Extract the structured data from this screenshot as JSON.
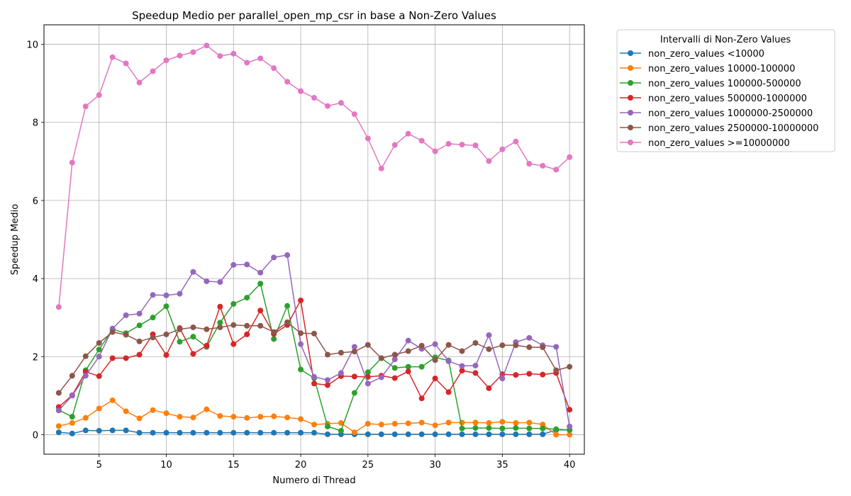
{
  "chart_data": {
    "type": "line",
    "title": "Speedup Medio per parallel_open_mp_csr in base a Non-Zero Values",
    "xlabel": "Numero di Thread",
    "ylabel": "Speedup Medio",
    "xlim": [
      0.9,
      41.1
    ],
    "ylim": [
      -0.5,
      10.5
    ],
    "xticks": [
      5,
      10,
      15,
      20,
      25,
      30,
      35,
      40
    ],
    "yticks": [
      0,
      2,
      4,
      6,
      8,
      10
    ],
    "grid": true,
    "legend_position": "outside-top-right",
    "legend_title": "Intervalli di Non-Zero Values",
    "x": [
      2,
      3,
      4,
      5,
      6,
      7,
      8,
      9,
      10,
      11,
      12,
      13,
      14,
      15,
      16,
      17,
      18,
      19,
      20,
      21,
      22,
      23,
      24,
      25,
      26,
      27,
      28,
      29,
      30,
      31,
      32,
      33,
      34,
      35,
      36,
      37,
      38,
      39,
      40
    ],
    "series": [
      {
        "name": "non_zero_values <10000",
        "color": "#1f77b4",
        "values": [
          0.06,
          0.03,
          0.11,
          0.1,
          0.11,
          0.11,
          0.05,
          0.05,
          0.05,
          0.05,
          0.05,
          0.05,
          0.05,
          0.05,
          0.05,
          0.05,
          0.05,
          0.05,
          0.05,
          0.05,
          0.01,
          0.01,
          0.01,
          0.01,
          0.01,
          0.01,
          0.01,
          0.01,
          0.01,
          0.01,
          0.01,
          0.01,
          0.01,
          0.01,
          0.01,
          0.01,
          0.01,
          0.12,
          0.12
        ]
      },
      {
        "name": "non_zero_values 10000-100000",
        "color": "#ff7f0e",
        "values": [
          0.22,
          0.3,
          0.43,
          0.67,
          0.88,
          0.6,
          0.42,
          0.63,
          0.55,
          0.46,
          0.44,
          0.65,
          0.48,
          0.46,
          0.43,
          0.46,
          0.47,
          0.44,
          0.4,
          0.26,
          0.28,
          0.3,
          0.06,
          0.28,
          0.26,
          0.28,
          0.29,
          0.31,
          0.24,
          0.31,
          0.31,
          0.31,
          0.3,
          0.33,
          0.3,
          0.31,
          0.26,
          0.0,
          0.0
        ]
      },
      {
        "name": "non_zero_values 100000-500000",
        "color": "#2ca02c",
        "values": [
          0.63,
          0.46,
          1.65,
          2.18,
          2.7,
          2.6,
          2.8,
          3.0,
          3.29,
          2.38,
          2.51,
          2.25,
          2.87,
          3.35,
          3.51,
          3.87,
          2.45,
          3.3,
          1.67,
          1.45,
          0.21,
          0.1,
          1.07,
          1.6,
          1.96,
          1.71,
          1.74,
          1.74,
          1.98,
          1.9,
          0.16,
          0.17,
          0.17,
          0.16,
          0.17,
          0.16,
          0.16,
          0.14,
          0.12
        ]
      },
      {
        "name": "non_zero_values 500000-1000000",
        "color": "#d62728",
        "values": [
          0.71,
          1.01,
          1.61,
          1.5,
          1.96,
          1.96,
          2.05,
          2.57,
          2.04,
          2.73,
          2.07,
          2.28,
          3.28,
          2.32,
          2.57,
          3.18,
          2.58,
          2.81,
          3.44,
          1.31,
          1.27,
          1.5,
          1.49,
          1.48,
          1.51,
          1.45,
          1.62,
          0.93,
          1.44,
          1.09,
          1.64,
          1.58,
          1.19,
          1.55,
          1.53,
          1.56,
          1.54,
          1.58,
          0.64
        ]
      },
      {
        "name": "non_zero_values 1000000-2500000",
        "color": "#9467bd",
        "values": [
          0.62,
          1.0,
          1.51,
          2.0,
          2.72,
          3.06,
          3.1,
          3.58,
          3.57,
          3.61,
          4.17,
          3.93,
          3.91,
          4.35,
          4.36,
          4.15,
          4.54,
          4.6,
          2.32,
          1.48,
          1.4,
          1.58,
          2.25,
          1.31,
          1.47,
          1.93,
          2.41,
          2.2,
          2.32,
          1.88,
          1.76,
          1.77,
          2.55,
          1.44,
          2.37,
          2.48,
          2.29,
          2.25,
          0.21
        ]
      },
      {
        "name": "non_zero_values 2500000-10000000",
        "color": "#8c564b",
        "values": [
          1.07,
          1.51,
          2.01,
          2.35,
          2.63,
          2.56,
          2.39,
          2.49,
          2.57,
          2.7,
          2.75,
          2.7,
          2.75,
          2.81,
          2.79,
          2.79,
          2.63,
          2.88,
          2.6,
          2.59,
          2.05,
          2.1,
          2.13,
          2.3,
          1.96,
          2.05,
          2.14,
          2.28,
          1.91,
          2.3,
          2.14,
          2.35,
          2.19,
          2.29,
          2.29,
          2.24,
          2.24,
          1.65,
          1.74
        ]
      },
      {
        "name": "non_zero_values >=10000000",
        "color": "#e377c2",
        "values": [
          3.27,
          6.97,
          8.41,
          8.7,
          9.67,
          9.51,
          9.02,
          9.31,
          9.59,
          9.71,
          9.8,
          9.97,
          9.7,
          9.76,
          9.53,
          9.64,
          9.39,
          9.04,
          8.8,
          8.63,
          8.42,
          8.5,
          8.21,
          7.59,
          6.82,
          7.42,
          7.71,
          7.53,
          7.26,
          7.45,
          7.43,
          7.41,
          7.01,
          7.31,
          7.51,
          6.94,
          6.89,
          6.79,
          7.11
        ]
      }
    ]
  }
}
